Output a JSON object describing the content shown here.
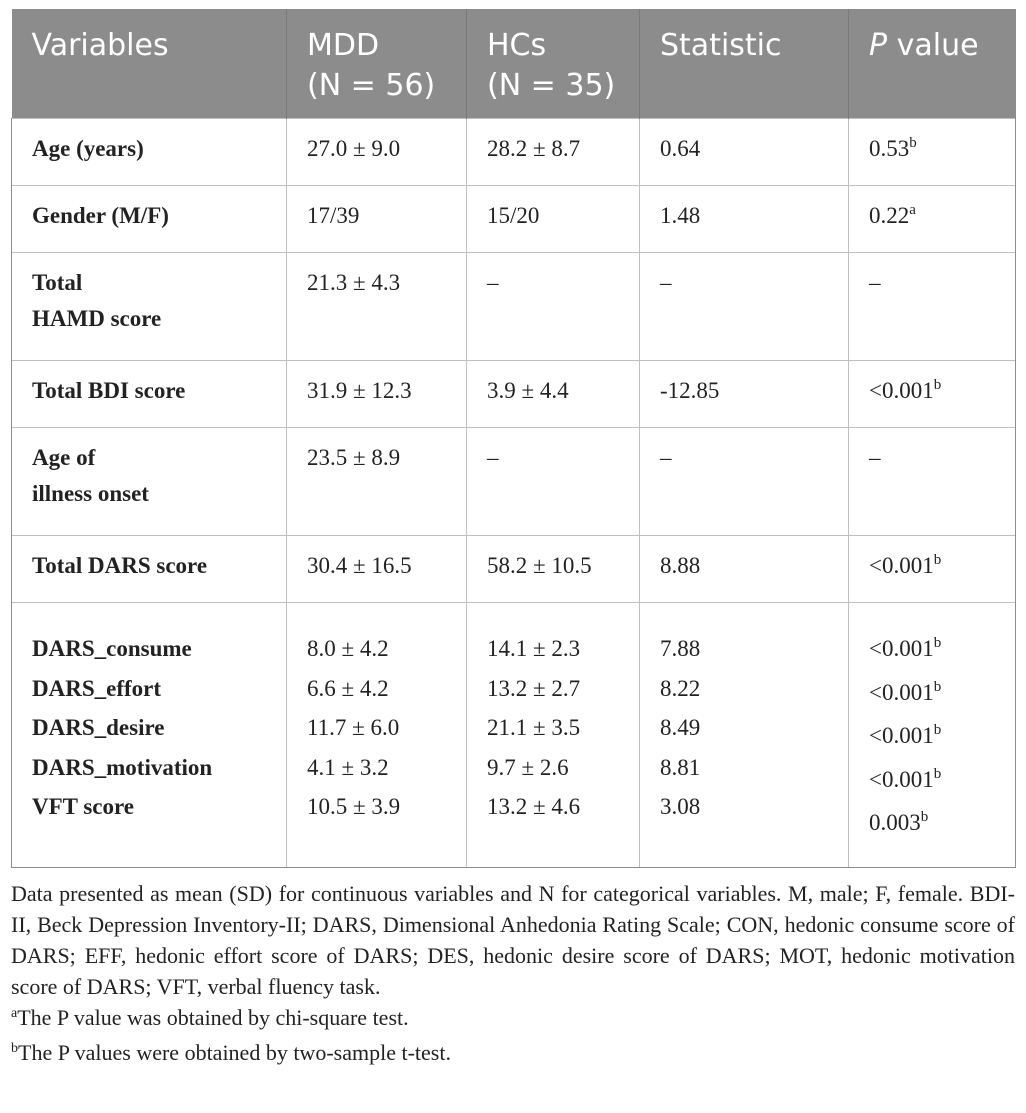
{
  "table": {
    "headers": {
      "variables": "Variables",
      "mdd": [
        "MDD",
        "(N = 56)"
      ],
      "hcs": [
        "HCs",
        "(N = 35)"
      ],
      "statistic": "Statistic",
      "pvalue_italic": "P",
      "pvalue_rest": " value"
    },
    "rows": [
      {
        "label": [
          "Age (years)"
        ],
        "mdd": "27.0 ± 9.0",
        "hcs": "28.2 ± 8.7",
        "stat": "0.64",
        "p": "0.53",
        "sup": "b"
      },
      {
        "label": [
          "Gender (M/F)"
        ],
        "mdd": "17/39",
        "hcs": "15/20",
        "stat": "1.48",
        "p": "0.22",
        "sup": "a"
      },
      {
        "label": [
          "Total",
          "HAMD score"
        ],
        "mdd": "21.3 ± 4.3",
        "hcs": "–",
        "stat": "–",
        "p": "–",
        "sup": ""
      },
      {
        "label": [
          "Total BDI score"
        ],
        "mdd": "31.9 ± 12.3",
        "hcs": "3.9 ± 4.4",
        "stat": "-12.85",
        "p": "<0.001",
        "sup": "b"
      },
      {
        "label": [
          "Age of",
          "illness onset"
        ],
        "mdd": "23.5 ± 8.9",
        "hcs": "–",
        "stat": "–",
        "p": "–",
        "sup": ""
      },
      {
        "label": [
          "Total DARS score"
        ],
        "mdd": "30.4 ± 16.5",
        "hcs": "58.2 ± 10.5",
        "stat": "8.88",
        "p": "<0.001",
        "sup": "b"
      }
    ],
    "subscale_rows": [
      {
        "label": "DARS_consume",
        "mdd": "8.0 ± 4.2",
        "hcs": "14.1 ± 2.3",
        "stat": "7.88",
        "p": "<0.001",
        "sup": "b"
      },
      {
        "label": "DARS_effort",
        "mdd": "6.6 ± 4.2",
        "hcs": "13.2 ± 2.7",
        "stat": "8.22",
        "p": "<0.001",
        "sup": "b"
      },
      {
        "label": "DARS_desire",
        "mdd": "11.7 ± 6.0",
        "hcs": "21.1 ± 3.5",
        "stat": "8.49",
        "p": "<0.001",
        "sup": "b"
      },
      {
        "label": "DARS_motivation",
        "mdd": "4.1 ± 3.2",
        "hcs": "9.7 ± 2.6",
        "stat": "8.81",
        "p": "<0.001",
        "sup": "b"
      },
      {
        "label": "VFT score",
        "mdd": "10.5 ± 3.9",
        "hcs": "13.2 ± 4.6",
        "stat": "3.08",
        "p": "0.003",
        "sup": "b"
      }
    ]
  },
  "footnotes": {
    "note": "Data presented as mean (SD) for continuous variables and N for categorical variables. M, male; F, female. BDI-II, Beck Depression Inventory-II; DARS, Dimensional Anhedonia Rating Scale; CON, hedonic consume score of DARS; EFF, hedonic effort score of DARS; DES, hedonic desire score of DARS; MOT, hedonic motivation score of DARS; VFT, verbal fluency task.",
    "a_marker": "a",
    "a_text": "The P value was obtained by chi-square test.",
    "b_marker": "b",
    "b_text": "The P values were obtained by two-sample t-test."
  },
  "colors": {
    "header_bg": "#8c8c8c",
    "header_text": "#ffffff",
    "grid": "#bfbfbf",
    "body_text": "#222222"
  }
}
